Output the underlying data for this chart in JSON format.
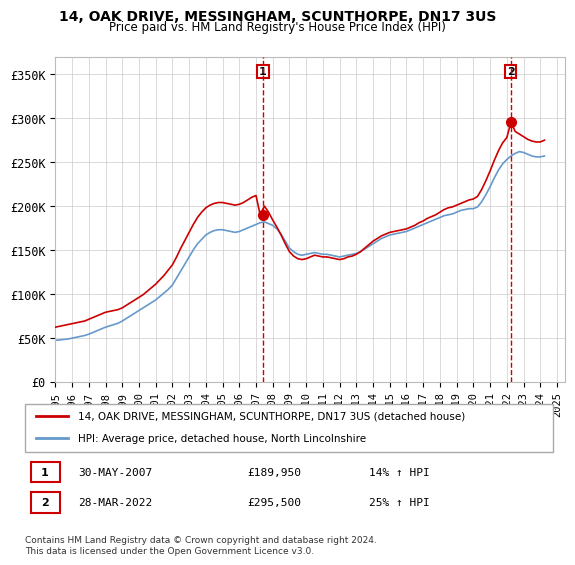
{
  "title": "14, OAK DRIVE, MESSINGHAM, SCUNTHORPE, DN17 3US",
  "subtitle": "Price paid vs. HM Land Registry's House Price Index (HPI)",
  "ylabel_ticks": [
    "£0",
    "£50K",
    "£100K",
    "£150K",
    "£200K",
    "£250K",
    "£300K",
    "£350K"
  ],
  "ytick_vals": [
    0,
    50000,
    100000,
    150000,
    200000,
    250000,
    300000,
    350000
  ],
  "ylim": [
    0,
    370000
  ],
  "xlim_start": 1995.0,
  "xlim_end": 2025.5,
  "legend_line1": "14, OAK DRIVE, MESSINGHAM, SCUNTHORPE, DN17 3US (detached house)",
  "legend_line2": "HPI: Average price, detached house, North Lincolnshire",
  "marker1_year": 2007.42,
  "marker1_price": 189950,
  "marker1_label": "1",
  "marker1_date": "30-MAY-2007",
  "marker1_pct": "14% ↑ HPI",
  "marker2_year": 2022.23,
  "marker2_price": 295500,
  "marker2_label": "2",
  "marker2_date": "28-MAR-2022",
  "marker2_pct": "25% ↑ HPI",
  "footer": "Contains HM Land Registry data © Crown copyright and database right 2024.\nThis data is licensed under the Open Government Licence v3.0.",
  "line_color_red": "#cc0000",
  "line_color_blue": "#6699cc",
  "marker_box_color": "#cc0000",
  "grid_color": "#cccccc",
  "background_color": "#ffffff",
  "hpi_years": [
    1995.0,
    1995.25,
    1995.5,
    1995.75,
    1996.0,
    1996.25,
    1996.5,
    1996.75,
    1997.0,
    1997.25,
    1997.5,
    1997.75,
    1998.0,
    1998.25,
    1998.5,
    1998.75,
    1999.0,
    1999.25,
    1999.5,
    1999.75,
    2000.0,
    2000.25,
    2000.5,
    2000.75,
    2001.0,
    2001.25,
    2001.5,
    2001.75,
    2002.0,
    2002.25,
    2002.5,
    2002.75,
    2003.0,
    2003.25,
    2003.5,
    2003.75,
    2004.0,
    2004.25,
    2004.5,
    2004.75,
    2005.0,
    2005.25,
    2005.5,
    2005.75,
    2006.0,
    2006.25,
    2006.5,
    2006.75,
    2007.0,
    2007.25,
    2007.5,
    2007.75,
    2008.0,
    2008.25,
    2008.5,
    2008.75,
    2009.0,
    2009.25,
    2009.5,
    2009.75,
    2010.0,
    2010.25,
    2010.5,
    2010.75,
    2011.0,
    2011.25,
    2011.5,
    2011.75,
    2012.0,
    2012.25,
    2012.5,
    2012.75,
    2013.0,
    2013.25,
    2013.5,
    2013.75,
    2014.0,
    2014.25,
    2014.5,
    2014.75,
    2015.0,
    2015.25,
    2015.5,
    2015.75,
    2016.0,
    2016.25,
    2016.5,
    2016.75,
    2017.0,
    2017.25,
    2017.5,
    2017.75,
    2018.0,
    2018.25,
    2018.5,
    2018.75,
    2019.0,
    2019.25,
    2019.5,
    2019.75,
    2020.0,
    2020.25,
    2020.5,
    2020.75,
    2021.0,
    2021.25,
    2021.5,
    2021.75,
    2022.0,
    2022.25,
    2022.5,
    2022.75,
    2023.0,
    2023.25,
    2023.5,
    2023.75,
    2024.0,
    2024.25
  ],
  "hpi_values": [
    47000,
    47500,
    48000,
    48500,
    49500,
    50500,
    51500,
    52500,
    54000,
    56000,
    58000,
    60000,
    62000,
    63500,
    65000,
    66500,
    69000,
    72000,
    75000,
    78000,
    81000,
    84000,
    87000,
    90000,
    93000,
    97000,
    101000,
    105000,
    110000,
    118000,
    126000,
    134000,
    142000,
    150000,
    157000,
    162000,
    167000,
    170000,
    172000,
    173000,
    173000,
    172000,
    171000,
    170000,
    171000,
    173000,
    175000,
    177000,
    179000,
    181000,
    182000,
    180000,
    178000,
    174000,
    168000,
    160000,
    152000,
    148000,
    145000,
    144000,
    145000,
    146000,
    147000,
    146000,
    145000,
    145000,
    144000,
    143000,
    142000,
    143000,
    144000,
    145000,
    146000,
    148000,
    151000,
    154000,
    157000,
    160000,
    163000,
    165000,
    167000,
    168000,
    169000,
    170000,
    171000,
    173000,
    175000,
    177000,
    179000,
    181000,
    183000,
    185000,
    187000,
    189000,
    190000,
    191000,
    193000,
    195000,
    196000,
    197000,
    197000,
    199000,
    205000,
    213000,
    222000,
    232000,
    241000,
    248000,
    253000,
    257000,
    260000,
    262000,
    261000,
    259000,
    257000,
    256000,
    256000,
    257000
  ],
  "red_years": [
    1995.0,
    1995.25,
    1995.5,
    1995.75,
    1996.0,
    1996.25,
    1996.5,
    1996.75,
    1997.0,
    1997.25,
    1997.5,
    1997.75,
    1998.0,
    1998.25,
    1998.5,
    1998.75,
    1999.0,
    1999.25,
    1999.5,
    1999.75,
    2000.0,
    2000.25,
    2000.5,
    2000.75,
    2001.0,
    2001.25,
    2001.5,
    2001.75,
    2002.0,
    2002.25,
    2002.5,
    2002.75,
    2003.0,
    2003.25,
    2003.5,
    2003.75,
    2004.0,
    2004.25,
    2004.5,
    2004.75,
    2005.0,
    2005.25,
    2005.5,
    2005.75,
    2006.0,
    2006.25,
    2006.5,
    2006.75,
    2007.0,
    2007.25,
    2007.5,
    2007.75,
    2008.0,
    2008.25,
    2008.5,
    2008.75,
    2009.0,
    2009.25,
    2009.5,
    2009.75,
    2010.0,
    2010.25,
    2010.5,
    2010.75,
    2011.0,
    2011.25,
    2011.5,
    2011.75,
    2012.0,
    2012.25,
    2012.5,
    2012.75,
    2013.0,
    2013.25,
    2013.5,
    2013.75,
    2014.0,
    2014.25,
    2014.5,
    2014.75,
    2015.0,
    2015.25,
    2015.5,
    2015.75,
    2016.0,
    2016.25,
    2016.5,
    2016.75,
    2017.0,
    2017.25,
    2017.5,
    2017.75,
    2018.0,
    2018.25,
    2018.5,
    2018.75,
    2019.0,
    2019.25,
    2019.5,
    2019.75,
    2020.0,
    2020.25,
    2020.5,
    2020.75,
    2021.0,
    2021.25,
    2021.5,
    2021.75,
    2022.0,
    2022.25,
    2022.5,
    2022.75,
    2023.0,
    2023.25,
    2023.5,
    2023.75,
    2024.0,
    2024.25
  ],
  "red_values": [
    62000,
    63000,
    64000,
    65000,
    66000,
    67000,
    68000,
    69000,
    71000,
    73000,
    75000,
    77000,
    79000,
    80000,
    81000,
    82000,
    84000,
    87000,
    90000,
    93000,
    96000,
    99000,
    103000,
    107000,
    111000,
    116000,
    121000,
    127000,
    133000,
    142000,
    152000,
    161000,
    170000,
    179000,
    187000,
    193000,
    198000,
    201000,
    203000,
    204000,
    204000,
    203000,
    202000,
    201000,
    202000,
    204000,
    207000,
    210000,
    212000,
    189950,
    200000,
    193000,
    184000,
    176000,
    167000,
    157000,
    148000,
    143000,
    140000,
    139000,
    140000,
    142000,
    144000,
    143000,
    142000,
    142000,
    141000,
    140000,
    139000,
    140000,
    142000,
    143000,
    145000,
    148000,
    152000,
    156000,
    160000,
    163000,
    166000,
    168000,
    170000,
    171000,
    172000,
    173000,
    174000,
    176000,
    178000,
    181000,
    183000,
    186000,
    188000,
    190000,
    193000,
    196000,
    198000,
    199000,
    201000,
    203000,
    205000,
    207000,
    208000,
    211000,
    219000,
    229000,
    240000,
    252000,
    263000,
    272000,
    278000,
    295500,
    285000,
    282000,
    279000,
    276000,
    274000,
    273000,
    273000,
    275000
  ]
}
